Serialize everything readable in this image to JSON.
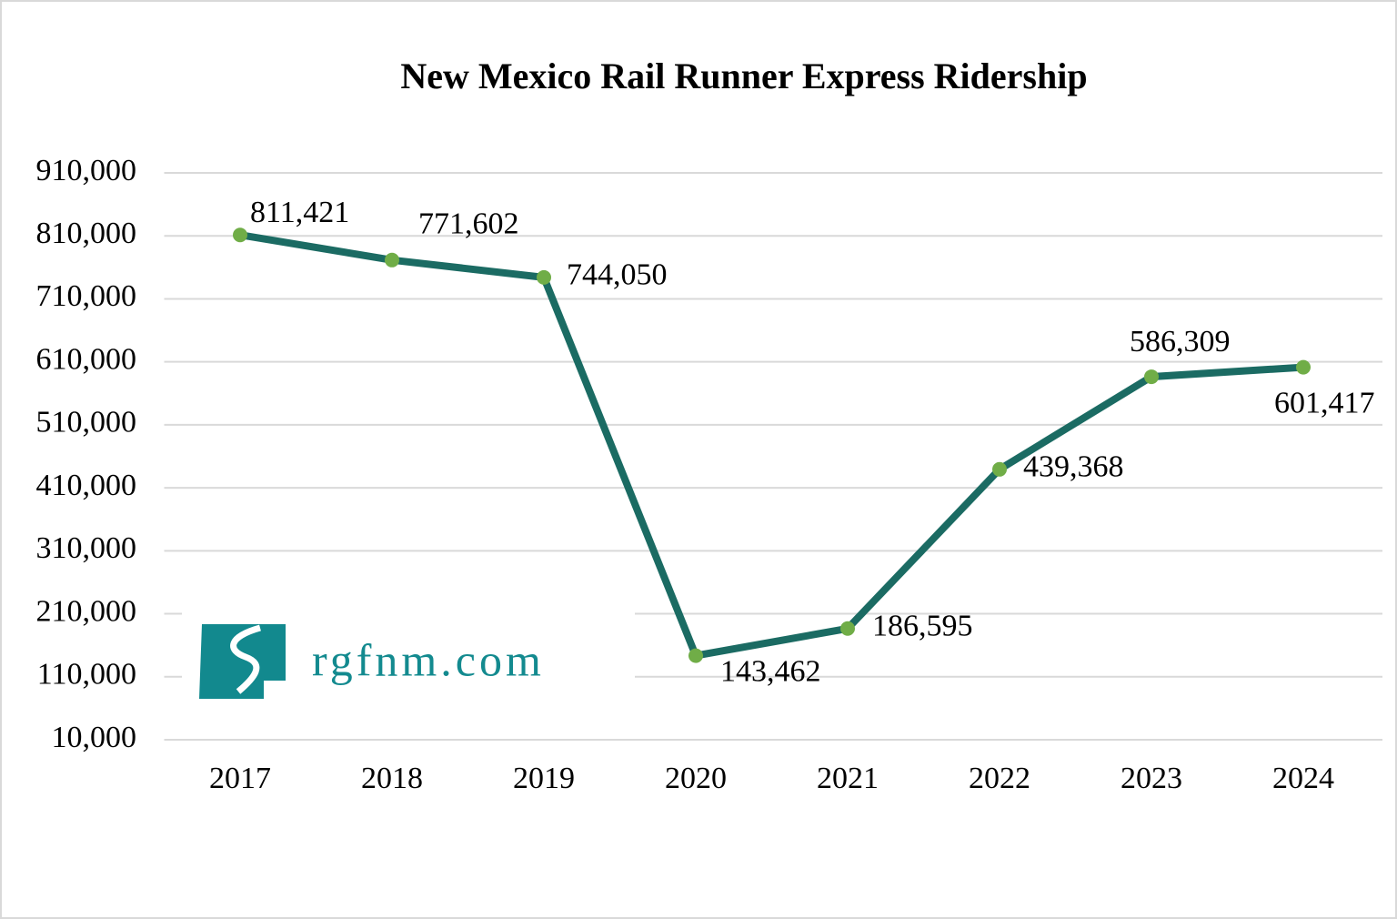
{
  "chart_data": {
    "type": "line",
    "title": "New Mexico Rail Runner Express Ridership",
    "watermark": "rgfnm.com",
    "categories": [
      "2017",
      "2018",
      "2019",
      "2020",
      "2021",
      "2022",
      "2023",
      "2024"
    ],
    "series": [
      {
        "name": "Ridership",
        "color": "#1b6b63",
        "marker_color": "#70ad47",
        "values": [
          811421,
          771602,
          744050,
          143462,
          186595,
          439368,
          586309,
          601417
        ],
        "value_labels": [
          "811,421",
          "771,602",
          "744,050",
          "143,462",
          "186,595",
          "439,368",
          "586,309",
          "601,417"
        ]
      }
    ],
    "ylim": [
      10000,
      910000
    ],
    "yticks": [
      {
        "value": 10000,
        "label": "10,000"
      },
      {
        "value": 110000,
        "label": "110,000"
      },
      {
        "value": 210000,
        "label": "210,000"
      },
      {
        "value": 310000,
        "label": "310,000"
      },
      {
        "value": 410000,
        "label": "410,000"
      },
      {
        "value": 510000,
        "label": "510,000"
      },
      {
        "value": 610000,
        "label": "610,000"
      },
      {
        "value": 710000,
        "label": "710,000"
      },
      {
        "value": 810000,
        "label": "810,000"
      },
      {
        "value": 910000,
        "label": "910,000"
      }
    ],
    "grid": true
  }
}
